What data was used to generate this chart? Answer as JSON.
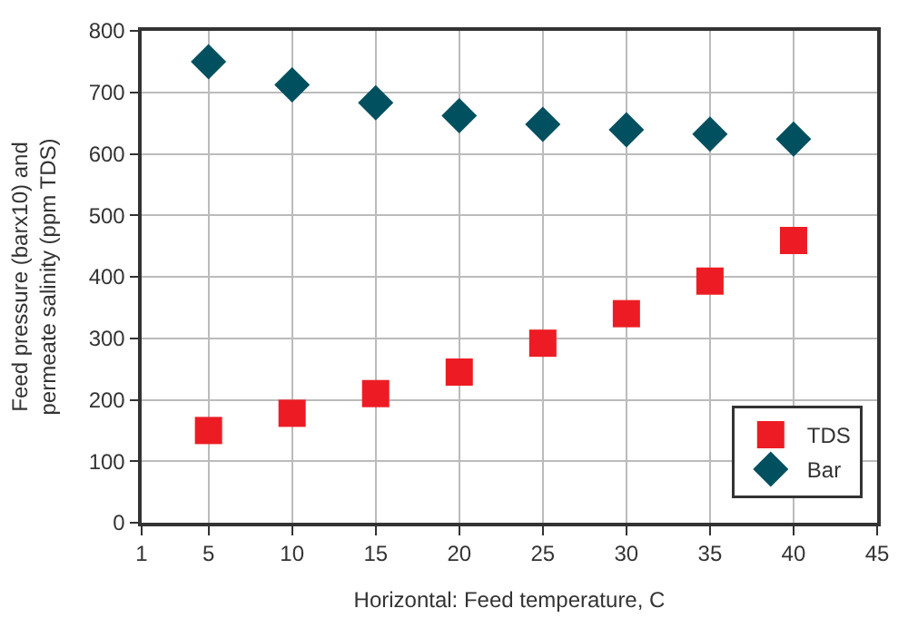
{
  "chart_data": {
    "type": "scatter",
    "xlabel": "Horizontal: Feed temperature, C",
    "ylabel": "Feed pressure (barx10) and\npermeate salinity (ppm TDS)",
    "x": [
      5,
      10,
      15,
      20,
      25,
      30,
      35,
      40
    ],
    "series": [
      {
        "name": "TDS",
        "color": "#ed1c24",
        "marker": "square",
        "values": [
          150,
          178,
          210,
          245,
          292,
          340,
          393,
          459
        ]
      },
      {
        "name": "Bar",
        "color": "#00505f",
        "marker": "diamond",
        "values": [
          750,
          712,
          683,
          662,
          648,
          639,
          632,
          624
        ]
      }
    ],
    "xlim": [
      1,
      45
    ],
    "xticks": [
      1,
      5,
      10,
      15,
      20,
      25,
      30,
      35,
      40,
      45
    ],
    "ylim": [
      0,
      800
    ],
    "yticks": [
      0,
      100,
      200,
      300,
      400,
      500,
      600,
      700,
      800
    ],
    "grid": true,
    "legend": "bottom right"
  }
}
